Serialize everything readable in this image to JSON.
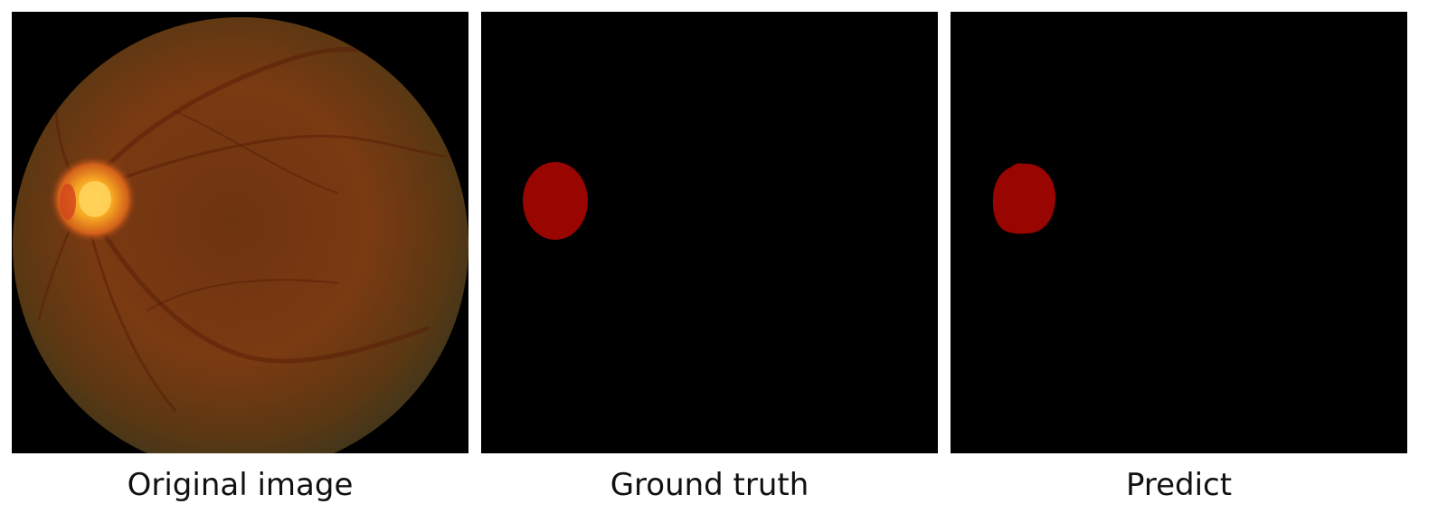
{
  "panels": [
    {
      "caption": "Original image",
      "content": "fundus-photograph",
      "colors": {
        "fundus": "#7f3c12",
        "fundus_edge": "#4a3414",
        "optic_disc": "#f6a623",
        "optic_disc_center": "#ffd35a"
      }
    },
    {
      "caption": "Ground truth",
      "content": "segmentation-mask",
      "colors": {
        "mask": "#990500",
        "background": "#000000"
      }
    },
    {
      "caption": "Predict",
      "content": "segmentation-mask",
      "colors": {
        "mask": "#990500",
        "background": "#000000"
      }
    }
  ]
}
